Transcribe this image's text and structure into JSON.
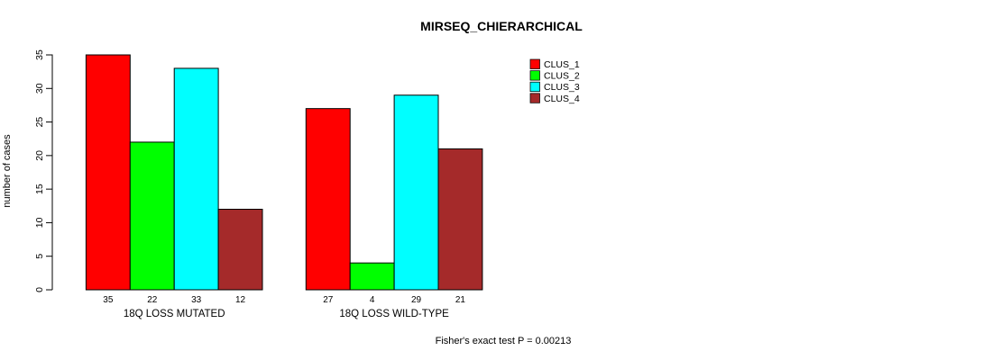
{
  "chart_data": {
    "type": "bar",
    "title": "MIRSEQ_CHIERARCHICAL",
    "ylabel": "number of cases",
    "xlabel": "",
    "categories": [
      "18Q LOSS MUTATED",
      "18Q LOSS WILD-TYPE"
    ],
    "series": [
      {
        "name": "CLUS_1",
        "color": "#FF0000",
        "values": [
          35,
          27
        ]
      },
      {
        "name": "CLUS_2",
        "color": "#00FF00",
        "values": [
          22,
          4
        ]
      },
      {
        "name": "CLUS_3",
        "color": "#00FFFF",
        "values": [
          33,
          29
        ]
      },
      {
        "name": "CLUS_4",
        "color": "#A52A2A",
        "values": [
          12,
          21
        ]
      }
    ],
    "ylim": [
      0,
      35
    ],
    "yticks": [
      0,
      5,
      10,
      15,
      20,
      25,
      30,
      35
    ],
    "grid": false,
    "bar_borders": "#000000",
    "value_labels_under_bars": true,
    "legend_position": "top-right",
    "footnote": "Fisher's exact test P = 0.00213"
  }
}
